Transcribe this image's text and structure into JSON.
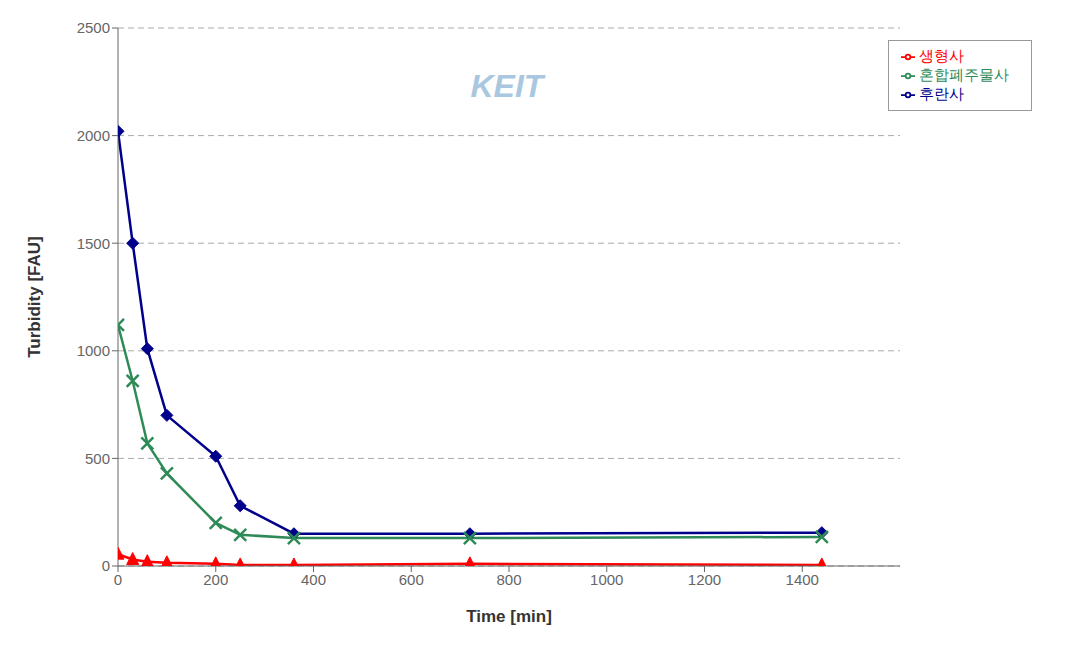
{
  "chart_data": {
    "type": "line",
    "xlabel": "Time [min]",
    "ylabel": "Turbidity [FAU]",
    "xlim": [
      0,
      1600
    ],
    "ylim": [
      0,
      2500
    ],
    "xticks": [
      0,
      200,
      400,
      600,
      800,
      1000,
      1200,
      1400
    ],
    "yticks": [
      0,
      500,
      1000,
      1500,
      2000,
      2500
    ],
    "grid": "y",
    "legend": "upper right",
    "annotations": [
      "KEIT"
    ],
    "x": [
      0,
      30,
      60,
      100,
      200,
      250,
      360,
      720,
      1440
    ],
    "series": [
      {
        "name": "후란사",
        "color": "#00008B",
        "marker": "diamond",
        "values": [
          2020,
          1500,
          1010,
          700,
          510,
          280,
          150,
          150,
          155
        ]
      },
      {
        "name": "생형사",
        "color": "#FF0000",
        "marker": "triangle",
        "values": [
          55,
          30,
          20,
          15,
          10,
          5,
          5,
          10,
          5
        ]
      },
      {
        "name": "혼합폐주물사",
        "color": "#2E8B57",
        "marker": "x",
        "values": [
          1120,
          860,
          570,
          430,
          200,
          145,
          130,
          130,
          135
        ]
      }
    ]
  }
}
